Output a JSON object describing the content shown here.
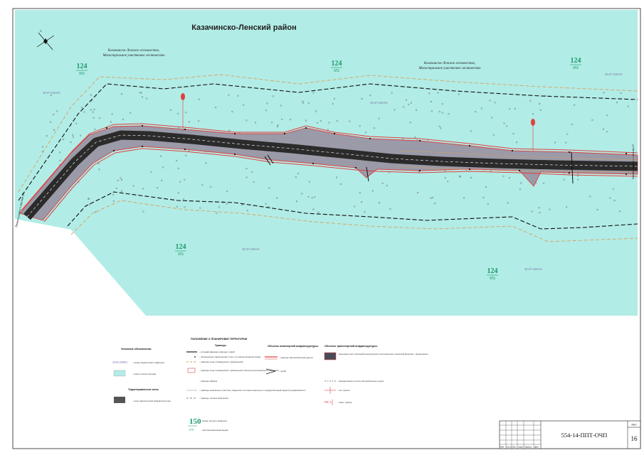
{
  "map": {
    "district_title": "Казачинско-Ленский район",
    "forestry_left": [
      "Казачинско-Ленское лесничество,",
      "Магистральное участковое лесничество"
    ],
    "forestry_right": [
      "Казачинско-Ленское лесничество,",
      "Магистральное участковое лесничество"
    ],
    "quarters": [
      {
        "num": "124",
        "sub": "972"
      },
      {
        "num": "124",
        "sub": "972"
      },
      {
        "num": "124",
        "sub": "972"
      },
      {
        "num": "124",
        "sub": "972"
      },
      {
        "num": "124",
        "sub": "972"
      }
    ],
    "cadastral": [
      "38:07:020101",
      "38:07:020101",
      "38:07:020101",
      "38:07:020101",
      "38:07:020101"
    ],
    "match_line_left": "Линия сшивки с листом 15",
    "match_line_right": "Линия сшивки с листом 17",
    "colors": {
      "territory": "#b2ece6",
      "right_of_way": "#9a9aa8",
      "carriageway": "#2b2b2b",
      "red_line": "#e04040",
      "orange_dash": "#d9a05a"
    }
  },
  "legend": {
    "conventions_title": "Условные обозначения:",
    "cadastral_sample": "38:05:220802",
    "cadastral_desc": "- номер кадастрового квартала",
    "forest_fund_desc": "- земли лесного фонда",
    "zones_title": "Территориальные зоны",
    "transport_zone_desc": "- зона транспортной инфраструктуры",
    "territory_title": "ПОЛОЖЕНИЕ О ПЛАНИРОВКЕ ТЕРРИТОРИИ",
    "boundaries_title": "Границы",
    "boundaries": [
      "- устанавливаемых красных линий",
      "- обозначение характерной точки, уточнение красной линии",
      "- границы зоны планируемого размещения",
      "- границы зоны планируемого размещения объектов регионального значения",
      "- границы района",
      "- границы земельных участков, сведения о которых внесены в государственный кадастр недвижимости",
      "- границы лесных кварталов"
    ],
    "quarter_sample": {
      "num": "150",
      "sub": "670"
    },
    "quarter_num_desc": "- номер лесного квартала",
    "quarter_area_desc": "- лесотаксационный выдел",
    "engineering_title": "Объекты инженерной инфраструктуры:",
    "engineering_items": [
      "- границы автомобильной дороги",
      "- труба"
    ],
    "transport_title": "Объекты транспортной инфраструктуры:",
    "transport_items": [
      "- проезжая часть автомобильной дороги регионального значения Верхняя - Казачинское",
      "- придорожные полосы автомобильных дорог",
      "- ось трассы",
      "ПК 1",
      "- пикет трассы"
    ]
  },
  "stamp": {
    "code": "554-14-ППТ-ОЧП",
    "sheet_label": "Лист",
    "sheet_number": "16",
    "columns": [
      "Изм.",
      "Кол.уч",
      "Лист",
      "№док",
      "Подпись",
      "Дата"
    ]
  }
}
